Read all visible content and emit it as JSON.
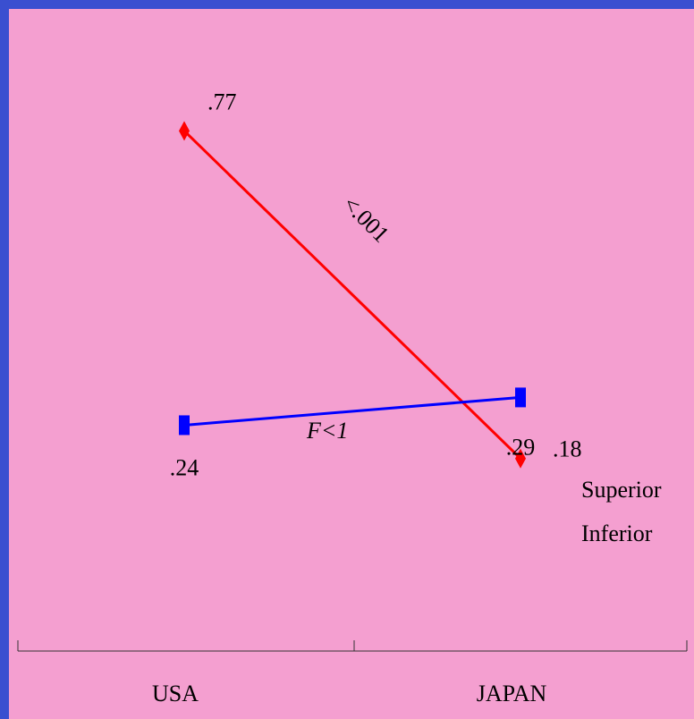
{
  "chart_data": {
    "type": "line",
    "categories": [
      "USA",
      "JAPAN"
    ],
    "series": [
      {
        "name": "Superior",
        "values": [
          0.77,
          0.18
        ],
        "data_labels": [
          ".77",
          ".18"
        ],
        "color": "#ff0000",
        "marker": "diamond"
      },
      {
        "name": "Inferior",
        "values": [
          0.24,
          0.29
        ],
        "data_labels": [
          ".24",
          ".29"
        ],
        "color": "#0000ff",
        "marker": "square"
      }
    ],
    "annotations": {
      "superior_test": "<.001",
      "inferior_test": "F<1"
    },
    "title": "",
    "xlabel": "",
    "ylabel": "",
    "legend_position": "right",
    "grid": false
  },
  "colors": {
    "background": "#f49fd0",
    "border": "#3a4fd0"
  }
}
